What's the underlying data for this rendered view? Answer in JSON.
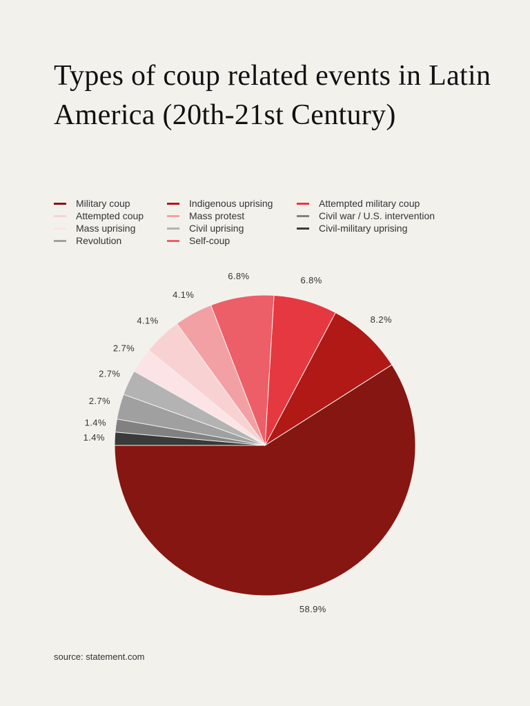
{
  "title": "Types of coup related events in Latin America (20th-21st Century)",
  "source": "source: statement.com",
  "chart_data": {
    "type": "pie",
    "title": "Types of coup related events in Latin America (20th-21st Century)",
    "legend_position": "top",
    "categories": [
      "Military coup",
      "Indigenous uprising",
      "Attempted military coup",
      "Self-coup",
      "Mass protest",
      "Attempted coup",
      "Mass uprising",
      "Civil uprising",
      "Revolution",
      "Civil war / U.S. intervention",
      "Civil-military uprising"
    ],
    "values": [
      58.9,
      8.2,
      6.8,
      6.8,
      4.1,
      4.1,
      2.7,
      2.7,
      2.7,
      1.4,
      1.4
    ],
    "labels": [
      "58.9%",
      "8.2%",
      "6.8%",
      "6.8%",
      "4.1%",
      "4.1%",
      "2.7%",
      "2.7%",
      "2.7%",
      "1.4%",
      "1.4%"
    ],
    "colors": [
      "#861611",
      "#b01915",
      "#e63841",
      "#ec5f68",
      "#f3a0a5",
      "#f8d2d2",
      "#fce3e6",
      "#b3b3b3",
      "#a0a0a0",
      "#818181",
      "#3a3a3a"
    ]
  },
  "legend_order": [
    0,
    1,
    2,
    5,
    4,
    9,
    6,
    7,
    10,
    8,
    3
  ]
}
